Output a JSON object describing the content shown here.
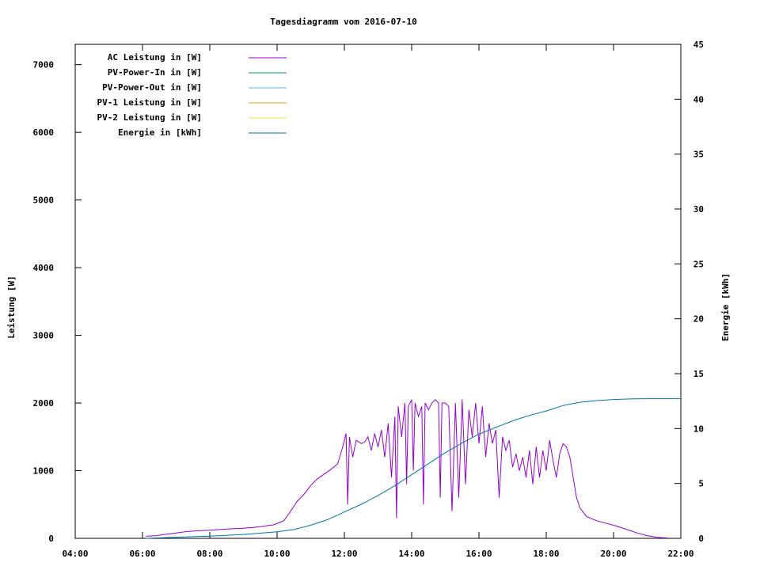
{
  "chart_data": {
    "type": "line",
    "title": "Tagesdiagramm vom 2016-07-10",
    "ylabel": "Leistung [W]",
    "y2label": "Energie [kWh]",
    "x_ticks": [
      "04:00",
      "06:00",
      "08:00",
      "10:00",
      "12:00",
      "14:00",
      "16:00",
      "18:00",
      "20:00",
      "22:00"
    ],
    "xlim": [
      4,
      22
    ],
    "ylim": [
      0,
      7300
    ],
    "y2lim": [
      0,
      45
    ],
    "y_ticks": [
      0,
      1000,
      2000,
      3000,
      4000,
      5000,
      6000,
      7000
    ],
    "y2_ticks": [
      0,
      5,
      10,
      15,
      20,
      25,
      30,
      35,
      40,
      45
    ],
    "legend_position": "top-left",
    "series": [
      {
        "name": "AC Leistung in [W]",
        "axis": "left",
        "color": "#9400D3",
        "points": [
          [
            6.1,
            30
          ],
          [
            6.4,
            40
          ],
          [
            6.7,
            60
          ],
          [
            7.0,
            80
          ],
          [
            7.3,
            100
          ],
          [
            7.6,
            110
          ],
          [
            8.0,
            120
          ],
          [
            8.3,
            130
          ],
          [
            8.6,
            140
          ],
          [
            9.0,
            150
          ],
          [
            9.3,
            160
          ],
          [
            9.6,
            180
          ],
          [
            9.9,
            200
          ],
          [
            10.2,
            260
          ],
          [
            10.4,
            400
          ],
          [
            10.6,
            550
          ],
          [
            10.8,
            650
          ],
          [
            11.0,
            780
          ],
          [
            11.2,
            880
          ],
          [
            11.4,
            950
          ],
          [
            11.6,
            1020
          ],
          [
            11.8,
            1100
          ],
          [
            11.95,
            1350
          ],
          [
            12.05,
            1550
          ],
          [
            12.1,
            500
          ],
          [
            12.15,
            1500
          ],
          [
            12.25,
            1200
          ],
          [
            12.35,
            1450
          ],
          [
            12.5,
            1400
          ],
          [
            12.6,
            1420
          ],
          [
            12.7,
            1500
          ],
          [
            12.8,
            1300
          ],
          [
            12.9,
            1550
          ],
          [
            13.0,
            1350
          ],
          [
            13.1,
            1600
          ],
          [
            13.2,
            1200
          ],
          [
            13.3,
            1700
          ],
          [
            13.4,
            900
          ],
          [
            13.5,
            1800
          ],
          [
            13.55,
            300
          ],
          [
            13.6,
            1950
          ],
          [
            13.7,
            1500
          ],
          [
            13.8,
            2000
          ],
          [
            13.85,
            800
          ],
          [
            13.9,
            1950
          ],
          [
            14.0,
            2050
          ],
          [
            14.05,
            1000
          ],
          [
            14.1,
            2000
          ],
          [
            14.2,
            1800
          ],
          [
            14.3,
            1950
          ],
          [
            14.35,
            500
          ],
          [
            14.4,
            2000
          ],
          [
            14.5,
            1900
          ],
          [
            14.6,
            2000
          ],
          [
            14.7,
            2050
          ],
          [
            14.8,
            2000
          ],
          [
            14.85,
            600
          ],
          [
            14.9,
            2000
          ],
          [
            15.0,
            2000
          ],
          [
            15.1,
            1950
          ],
          [
            15.2,
            400
          ],
          [
            15.3,
            2000
          ],
          [
            15.4,
            600
          ],
          [
            15.5,
            2050
          ],
          [
            15.6,
            800
          ],
          [
            15.7,
            1900
          ],
          [
            15.8,
            1500
          ],
          [
            15.9,
            2000
          ],
          [
            16.0,
            1400
          ],
          [
            16.1,
            1950
          ],
          [
            16.2,
            1200
          ],
          [
            16.3,
            1700
          ],
          [
            16.4,
            1400
          ],
          [
            16.5,
            1600
          ],
          [
            16.6,
            600
          ],
          [
            16.7,
            1500
          ],
          [
            16.8,
            1300
          ],
          [
            16.9,
            1450
          ],
          [
            17.0,
            1050
          ],
          [
            17.1,
            1250
          ],
          [
            17.2,
            1000
          ],
          [
            17.3,
            1200
          ],
          [
            17.4,
            900
          ],
          [
            17.5,
            1300
          ],
          [
            17.6,
            800
          ],
          [
            17.7,
            1350
          ],
          [
            17.8,
            900
          ],
          [
            17.9,
            1300
          ],
          [
            18.0,
            1000
          ],
          [
            18.1,
            1450
          ],
          [
            18.2,
            1150
          ],
          [
            18.3,
            900
          ],
          [
            18.4,
            1250
          ],
          [
            18.5,
            1400
          ],
          [
            18.6,
            1350
          ],
          [
            18.7,
            1200
          ],
          [
            18.8,
            900
          ],
          [
            18.9,
            600
          ],
          [
            19.0,
            450
          ],
          [
            19.2,
            320
          ],
          [
            19.5,
            260
          ],
          [
            19.8,
            220
          ],
          [
            20.1,
            180
          ],
          [
            20.4,
            130
          ],
          [
            20.7,
            80
          ],
          [
            21.0,
            40
          ],
          [
            21.3,
            15
          ],
          [
            21.6,
            5
          ]
        ]
      },
      {
        "name": "PV-Power-In in [W]",
        "axis": "left",
        "color": "#009E73",
        "points": []
      },
      {
        "name": "PV-Power-Out in [W]",
        "axis": "left",
        "color": "#56B4E9",
        "points": []
      },
      {
        "name": "PV-1 Leistung in [W]",
        "axis": "left",
        "color": "#E69F00",
        "points": []
      },
      {
        "name": "PV-2 Leistung in [W]",
        "axis": "left",
        "color": "#F0E442",
        "points": []
      },
      {
        "name": "Energie in [kWh]",
        "axis": "right",
        "color": "#0072B2",
        "points": [
          [
            6.1,
            0
          ],
          [
            7.0,
            0.1
          ],
          [
            8.0,
            0.2
          ],
          [
            9.0,
            0.35
          ],
          [
            10.0,
            0.6
          ],
          [
            10.5,
            0.8
          ],
          [
            11.0,
            1.2
          ],
          [
            11.5,
            1.7
          ],
          [
            12.0,
            2.4
          ],
          [
            12.5,
            3.1
          ],
          [
            13.0,
            3.9
          ],
          [
            13.5,
            4.8
          ],
          [
            14.0,
            5.8
          ],
          [
            14.5,
            6.8
          ],
          [
            15.0,
            7.8
          ],
          [
            15.5,
            8.7
          ],
          [
            16.0,
            9.5
          ],
          [
            16.5,
            10.1
          ],
          [
            17.0,
            10.7
          ],
          [
            17.5,
            11.2
          ],
          [
            18.0,
            11.6
          ],
          [
            18.5,
            12.1
          ],
          [
            19.0,
            12.4
          ],
          [
            19.5,
            12.55
          ],
          [
            20.0,
            12.65
          ],
          [
            20.5,
            12.7
          ],
          [
            21.0,
            12.72
          ],
          [
            22.0,
            12.72
          ]
        ]
      }
    ]
  }
}
